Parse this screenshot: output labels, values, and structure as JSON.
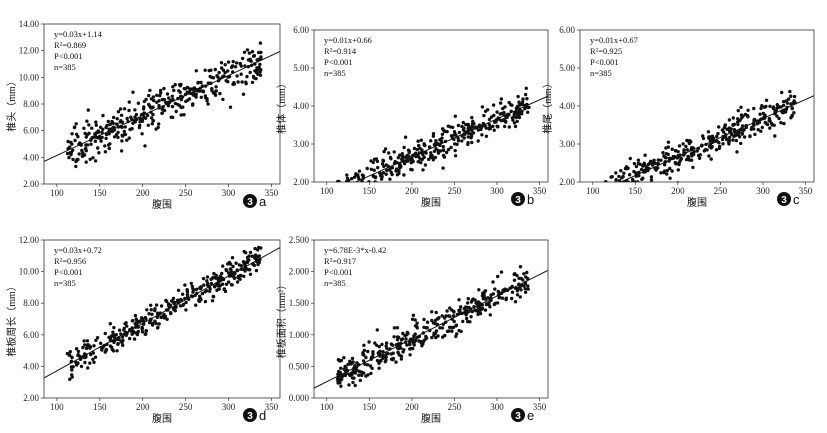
{
  "chart_data": [
    {
      "type": "scatter",
      "panel_mark": "3",
      "panel_letter": "a",
      "xlabel": "腹围",
      "ylabel": "椎头（mm）",
      "xlim": [
        85,
        360
      ],
      "ylim": [
        2.0,
        14.0
      ],
      "xticks": [
        100,
        150,
        200,
        250,
        300,
        350
      ],
      "yticks": [
        2.0,
        4.0,
        6.0,
        8.0,
        10.0,
        12.0,
        14.0
      ],
      "tick_labels": [
        "100",
        "150",
        "200",
        "250",
        "300",
        "350",
        "2.00",
        "4.00",
        "6.00",
        "8.00",
        "10.00",
        "12.00",
        "14.00"
      ],
      "fit": {
        "slope": 0.03,
        "intercept": 1.14
      },
      "stats": [
        "y=0.03x+1.14",
        "R²=0.869",
        "P<0.001",
        "n=385"
      ],
      "point_count": 385,
      "x_range": [
        112,
        338
      ],
      "noise": 0.7
    },
    {
      "type": "scatter",
      "panel_mark": "3",
      "panel_letter": "b",
      "xlabel": "腹围",
      "ylabel": "椎体（mm）",
      "xlim": [
        85,
        360
      ],
      "ylim": [
        2.0,
        6.0
      ],
      "xticks": [
        100,
        150,
        200,
        250,
        300,
        350
      ],
      "yticks": [
        2.0,
        3.0,
        4.0,
        5.0,
        6.0
      ],
      "tick_labels": [
        "100",
        "150",
        "200",
        "250",
        "300",
        "350",
        "2.00",
        "3.00",
        "4.00",
        "5.00",
        "6.00"
      ],
      "fit": {
        "slope": 0.01,
        "intercept": 0.66
      },
      "stats": [
        "y=0.01x+0.66",
        "R²=0.914",
        "P<0.001",
        "n=385"
      ],
      "point_count": 385,
      "x_range": [
        112,
        338
      ],
      "noise": 0.22
    },
    {
      "type": "scatter",
      "panel_mark": "3",
      "panel_letter": "c",
      "xlabel": "腹围",
      "ylabel": "椎尾（mm）",
      "xlim": [
        85,
        360
      ],
      "ylim": [
        2.0,
        6.0
      ],
      "xticks": [
        100,
        150,
        200,
        250,
        300,
        350
      ],
      "yticks": [
        2.0,
        3.0,
        4.0,
        5.0,
        6.0
      ],
      "tick_labels": [
        "100",
        "150",
        "200",
        "250",
        "300",
        "350",
        "2.00",
        "3.00",
        "4.00",
        "5.00",
        "6.00"
      ],
      "fit": {
        "slope": 0.01,
        "intercept": 0.67
      },
      "stats": [
        "y=0.01x+0.67",
        "R²=0.925",
        "P<0.001",
        "n=385"
      ],
      "point_count": 385,
      "x_range": [
        112,
        338
      ],
      "noise": 0.21
    },
    {
      "type": "scatter",
      "panel_mark": "3",
      "panel_letter": "d",
      "xlabel": "腹围",
      "ylabel": "椎板周长（mm）",
      "xlim": [
        85,
        360
      ],
      "ylim": [
        2.0,
        12.0
      ],
      "xticks": [
        100,
        150,
        200,
        250,
        300,
        350
      ],
      "yticks": [
        2.0,
        4.0,
        6.0,
        8.0,
        10.0,
        12.0
      ],
      "tick_labels": [
        "100",
        "150",
        "200",
        "250",
        "300",
        "350",
        "2.00",
        "4.00",
        "6.00",
        "8.00",
        "10.00",
        "12.00"
      ],
      "fit": {
        "slope": 0.03,
        "intercept": 0.72
      },
      "stats": [
        "y=0.03x+0.72",
        "R²=0.956",
        "P<0.001",
        "n=385"
      ],
      "point_count": 385,
      "x_range": [
        112,
        338
      ],
      "noise": 0.42
    },
    {
      "type": "scatter",
      "panel_mark": "3",
      "panel_letter": "e",
      "xlabel": "腹围",
      "ylabel": "椎板面积（mm²）",
      "xlim": [
        85,
        360
      ],
      "ylim": [
        0.0,
        2.5
      ],
      "xticks": [
        100,
        150,
        200,
        250,
        300,
        350
      ],
      "yticks": [
        0.0,
        0.5,
        1.0,
        1.5,
        2.0,
        2.5
      ],
      "tick_labels": [
        "100",
        "150",
        "200",
        "250",
        "300",
        "350",
        "0.000",
        "0.500",
        "1.000",
        "1.500",
        "2.000",
        "2.500"
      ],
      "fit": {
        "slope": 0.00678,
        "intercept": -0.42
      },
      "stats": [
        "y=6.78E-3*x-0.42",
        "R²=0.917",
        "P<0.001",
        "n=385"
      ],
      "point_count": 385,
      "x_range": [
        112,
        338
      ],
      "noise": 0.13
    }
  ]
}
